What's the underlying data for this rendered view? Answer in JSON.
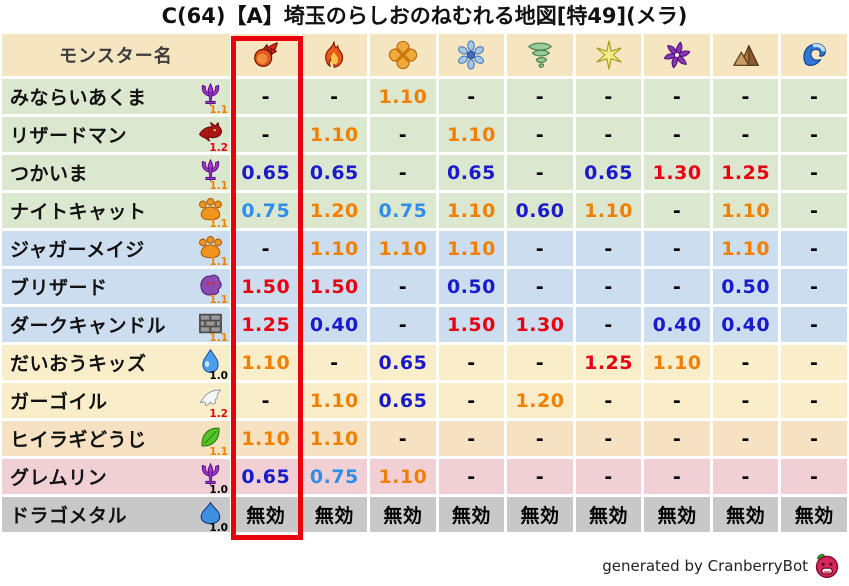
{
  "title": "C(64)【A】埼玉のらしおのねむれる地図[特49](メラ)",
  "footer": {
    "credit": "generated by CranberryBot"
  },
  "table": {
    "name_header": "モンスター名",
    "columns": [
      {
        "id": "mera",
        "icon": "fireball-icon",
        "highlighted": true
      },
      {
        "id": "gira",
        "icon": "flame-icon",
        "highlighted": false
      },
      {
        "id": "io",
        "icon": "explosion-icon",
        "highlighted": false
      },
      {
        "id": "hyado",
        "icon": "snowflake-icon",
        "highlighted": false
      },
      {
        "id": "bagi",
        "icon": "tornado-icon",
        "highlighted": false
      },
      {
        "id": "dein",
        "icon": "star-icon",
        "highlighted": false
      },
      {
        "id": "doruma",
        "icon": "pinwheel-icon",
        "highlighted": false
      },
      {
        "id": "earth",
        "icon": "mountain-icon",
        "highlighted": false
      },
      {
        "id": "water",
        "icon": "wave-icon",
        "highlighted": false
      }
    ],
    "rows": [
      {
        "name": "みならいあくま",
        "family_icon": "demon-icon",
        "multiplier": "1.1",
        "row_color": "green",
        "values": [
          "-",
          "-",
          "1.10",
          "-",
          "-",
          "-",
          "-",
          "-",
          "-"
        ]
      },
      {
        "name": "リザードマン",
        "family_icon": "dragon-icon",
        "multiplier": "1.2",
        "row_color": "green",
        "values": [
          "-",
          "1.10",
          "-",
          "1.10",
          "-",
          "-",
          "-",
          "-",
          "-"
        ]
      },
      {
        "name": "つかいま",
        "family_icon": "demon-icon",
        "multiplier": "1.1",
        "row_color": "green",
        "values": [
          "0.65",
          "0.65",
          "-",
          "0.65",
          "-",
          "0.65",
          "1.30",
          "1.25",
          "-"
        ]
      },
      {
        "name": "ナイトキャット",
        "family_icon": "paw-icon",
        "multiplier": "1.1",
        "row_color": "green",
        "values": [
          "0.75",
          "1.20",
          "0.75",
          "1.10",
          "0.60",
          "1.10",
          "-",
          "1.10",
          "-"
        ]
      },
      {
        "name": "ジャガーメイジ",
        "family_icon": "paw-icon",
        "multiplier": "1.1",
        "row_color": "blue",
        "values": [
          "-",
          "1.10",
          "1.10",
          "1.10",
          "-",
          "-",
          "-",
          "1.10",
          "-"
        ]
      },
      {
        "name": "ブリザード",
        "family_icon": "ghost-icon",
        "multiplier": "1.1",
        "row_color": "blue",
        "values": [
          "1.50",
          "1.50",
          "-",
          "0.50",
          "-",
          "-",
          "-",
          "0.50",
          "-"
        ]
      },
      {
        "name": "ダークキャンドル",
        "family_icon": "brick-icon",
        "multiplier": "1.1",
        "row_color": "blue",
        "values": [
          "1.25",
          "0.40",
          "-",
          "1.50",
          "1.30",
          "-",
          "0.40",
          "0.40",
          "-"
        ]
      },
      {
        "name": "だいおうキッズ",
        "family_icon": "waterdrop-icon",
        "multiplier": "1.0",
        "row_color": "yellow",
        "values": [
          "1.10",
          "-",
          "0.65",
          "-",
          "-",
          "1.25",
          "1.10",
          "-",
          "-"
        ]
      },
      {
        "name": "ガーゴイル",
        "family_icon": "wing-icon",
        "multiplier": "1.2",
        "row_color": "yellow",
        "values": [
          "-",
          "1.10",
          "0.65",
          "-",
          "1.20",
          "-",
          "-",
          "-",
          "-"
        ]
      },
      {
        "name": "ヒイラギどうじ",
        "family_icon": "leaf-icon",
        "multiplier": "1.1",
        "row_color": "peach",
        "values": [
          "1.10",
          "1.10",
          "-",
          "-",
          "-",
          "-",
          "-",
          "-",
          "-"
        ]
      },
      {
        "name": "グレムリン",
        "family_icon": "demon-icon",
        "multiplier": "1.0",
        "row_color": "pink",
        "values": [
          "0.65",
          "0.75",
          "1.10",
          "-",
          "-",
          "-",
          "-",
          "-",
          "-"
        ]
      },
      {
        "name": "ドラゴメタル",
        "family_icon": "slime-icon",
        "multiplier": "1.0",
        "row_color": "gray",
        "values": [
          "無効",
          "無効",
          "無効",
          "無効",
          "無効",
          "無効",
          "無効",
          "無効",
          "無効"
        ]
      }
    ]
  },
  "colors": {
    "header_bg": "#f5e6c1",
    "row_green": "#dce7cf",
    "row_blue": "#cdddf0",
    "row_yellow": "#faeeca",
    "row_peach": "#f6e1c2",
    "row_pink": "#f0d0d4",
    "row_gray": "#c8c8c8",
    "highlight_box": "#e8000d",
    "value_blue": "#1a1acd",
    "value_lightblue": "#2f8fe8",
    "value_orange": "#f08000",
    "value_red": "#e60012",
    "value_black": "#000000",
    "mult_black": "#000000",
    "mult_orange": "#f08000",
    "mult_red": "#e60012"
  },
  "value_color_map": {
    "0.40": "value_blue",
    "0.50": "value_blue",
    "0.60": "value_blue",
    "0.65": "value_blue",
    "0.75": "value_lightblue",
    "1.10": "value_orange",
    "1.20": "value_orange",
    "1.25": "value_red",
    "1.30": "value_red",
    "1.50": "value_red",
    "-": "value_black",
    "無効": "value_black"
  },
  "multiplier_color_map": {
    "1.0": "mult_black",
    "1.1": "mult_orange",
    "1.2": "mult_red"
  },
  "chart_data": {
    "type": "table",
    "title": "C(64)【A】埼玉のらしおのねむれる地図[特49](メラ)",
    "column_headers": [
      "モンスター名",
      "fireball",
      "flame",
      "explosion",
      "snowflake",
      "tornado",
      "star",
      "pinwheel",
      "mountain",
      "wave"
    ],
    "highlighted_column": "fireball",
    "rows": [
      [
        "みならいあくま",
        "-",
        "-",
        "1.10",
        "-",
        "-",
        "-",
        "-",
        "-",
        "-"
      ],
      [
        "リザードマン",
        "-",
        "1.10",
        "-",
        "1.10",
        "-",
        "-",
        "-",
        "-",
        "-"
      ],
      [
        "つかいま",
        "0.65",
        "0.65",
        "-",
        "0.65",
        "-",
        "0.65",
        "1.30",
        "1.25",
        "-"
      ],
      [
        "ナイトキャット",
        "0.75",
        "1.20",
        "0.75",
        "1.10",
        "0.60",
        "1.10",
        "-",
        "1.10",
        "-"
      ],
      [
        "ジャガーメイジ",
        "-",
        "1.10",
        "1.10",
        "1.10",
        "-",
        "-",
        "-",
        "1.10",
        "-"
      ],
      [
        "ブリザード",
        "1.50",
        "1.50",
        "-",
        "0.50",
        "-",
        "-",
        "-",
        "0.50",
        "-"
      ],
      [
        "ダークキャンドル",
        "1.25",
        "0.40",
        "-",
        "1.50",
        "1.30",
        "-",
        "0.40",
        "0.40",
        "-"
      ],
      [
        "だいおうキッズ",
        "1.10",
        "-",
        "0.65",
        "-",
        "-",
        "1.25",
        "1.10",
        "-",
        "-"
      ],
      [
        "ガーゴイル",
        "-",
        "1.10",
        "0.65",
        "-",
        "1.20",
        "-",
        "-",
        "-",
        "-"
      ],
      [
        "ヒイラギどうじ",
        "1.10",
        "1.10",
        "-",
        "-",
        "-",
        "-",
        "-",
        "-",
        "-"
      ],
      [
        "グレムリン",
        "0.65",
        "0.75",
        "1.10",
        "-",
        "-",
        "-",
        "-",
        "-",
        "-"
      ],
      [
        "ドラゴメタル",
        "無効",
        "無効",
        "無効",
        "無効",
        "無効",
        "無効",
        "無効",
        "無効",
        "無効"
      ]
    ]
  }
}
